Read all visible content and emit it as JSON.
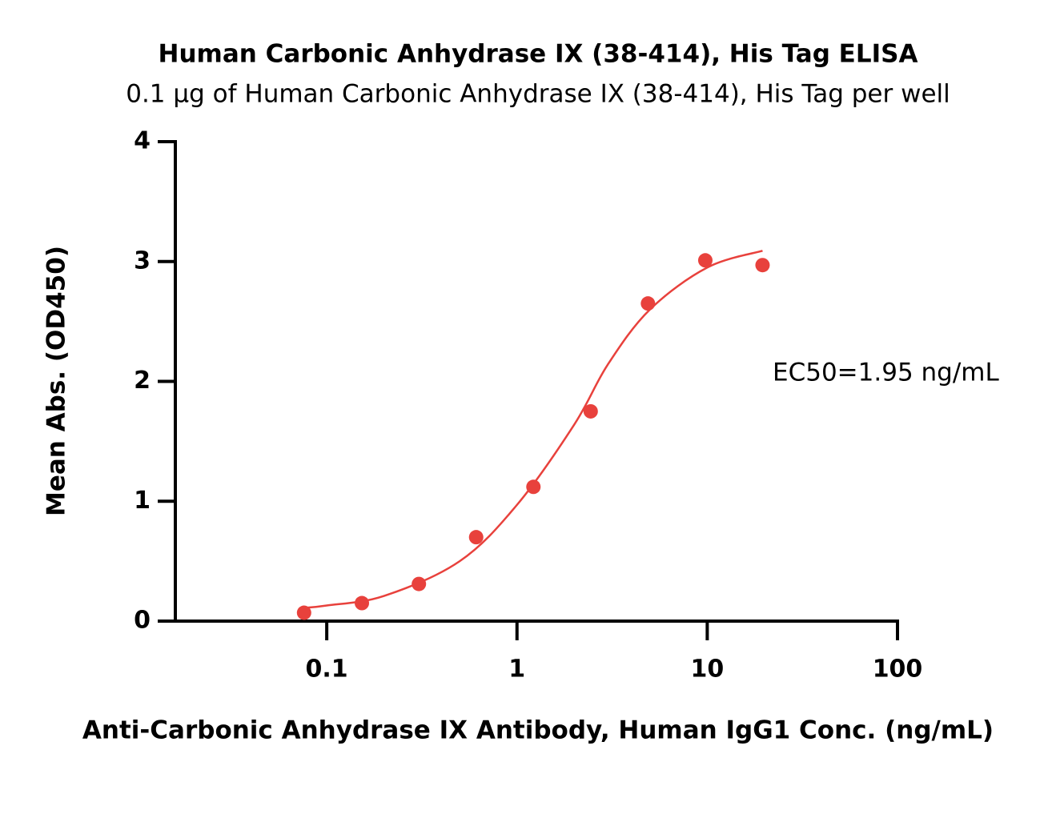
{
  "chart_data": {
    "type": "scatter",
    "title": "Human Carbonic Anhydrase IX (38-414), His Tag ELISA",
    "subtitle": "0.1 µg of Human Carbonic Anhydrase IX (38-414), His Tag per well",
    "x_label": "Anti-Carbonic Anhydrase IX Antibody, Human IgG1 Conc. (ng/mL)",
    "y_label": "Mean Abs. (OD450)",
    "annotation": "EC50=1.95 ng/mL",
    "xscale": "log",
    "xlim": [
      0.016,
      100
    ],
    "xticks": [
      0.1,
      1,
      10,
      100
    ],
    "ylim": [
      0,
      4
    ],
    "yticks": [
      0,
      1,
      2,
      3,
      4
    ],
    "color": "#e8413c",
    "x": [
      0.076,
      0.153,
      0.305,
      0.61,
      1.22,
      2.44,
      4.88,
      9.77,
      19.53
    ],
    "values": [
      0.07,
      0.15,
      0.31,
      0.7,
      1.12,
      1.75,
      2.65,
      3.01,
      2.97
    ],
    "curve": {
      "x": [
        0.076,
        0.1,
        0.2,
        0.5,
        1,
        2,
        3,
        5,
        10,
        19.53
      ],
      "values": [
        0.11,
        0.13,
        0.21,
        0.5,
        0.97,
        1.64,
        2.14,
        2.6,
        2.95,
        3.09
      ]
    }
  }
}
